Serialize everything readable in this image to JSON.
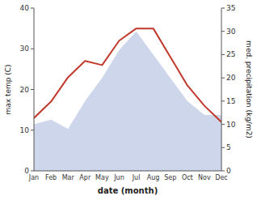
{
  "chart_data": {
    "type": "line",
    "categories": [
      "Jan",
      "Feb",
      "Mar",
      "Apr",
      "May",
      "Jun",
      "Jul",
      "Aug",
      "Sep",
      "Oct",
      "Nov",
      "Dec"
    ],
    "series": [
      {
        "type": "area",
        "axis": "y2",
        "color": "#c5cfe8",
        "values": [
          10,
          11,
          9,
          15,
          20,
          26,
          30,
          25,
          20,
          15,
          12,
          12
        ]
      },
      {
        "type": "line",
        "color": "#c0392b",
        "values": [
          13,
          17,
          23,
          27,
          26,
          32,
          35,
          35,
          28,
          21,
          16,
          12
        ]
      }
    ],
    "xlabel": "date (month)",
    "ylabel": "max temp (C)",
    "y2label": "med. precipitation (kg/m2)",
    "ylim": [
      0,
      40
    ],
    "yticks": [
      0,
      10,
      20,
      30,
      40
    ],
    "y2lim": [
      0,
      35
    ],
    "y2ticks": [
      0,
      5,
      10,
      15,
      20,
      25,
      30,
      35
    ],
    "grid": false
  }
}
